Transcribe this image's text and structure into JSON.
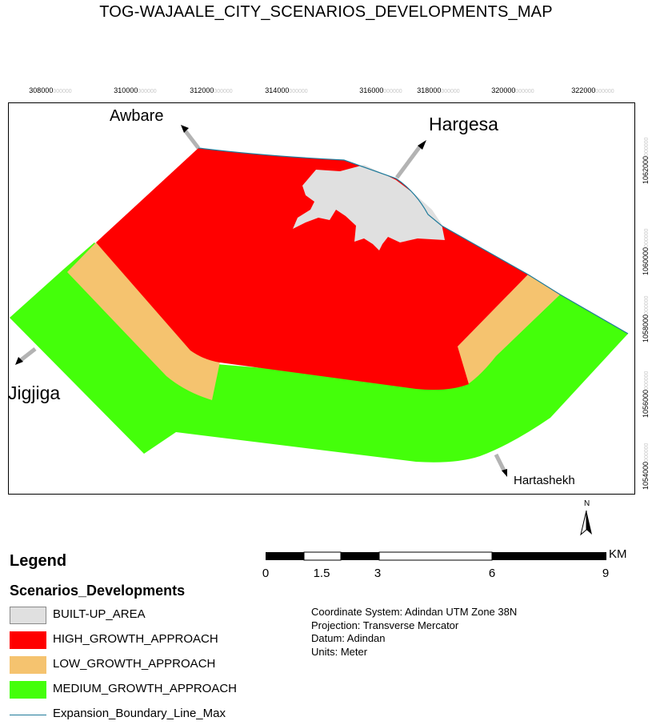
{
  "map": {
    "title": "TOG-WAJAALE_CITY_SCENARIOS_DEVELOPMENTS_MAP",
    "x_ticks": [
      "308000",
      "310000",
      "312000",
      "314000",
      "316000",
      "318000",
      "320000",
      "322000"
    ],
    "x_tick_suffix": "000000",
    "y_ticks": [
      "1062000",
      "1060000",
      "1058000",
      "1056000",
      "1054000"
    ],
    "y_tick_suffix": "000000",
    "places": {
      "awbare": "Awbare",
      "hargesa": "Hargesa",
      "jigjiga": "Jigjiga",
      "hartashekh": "Hartashekh"
    },
    "north_label": "N"
  },
  "colors": {
    "built_up": "#e0e0e0",
    "high_growth": "#ff0000",
    "low_growth": "#f5c36f",
    "medium_growth": "#44ff0a",
    "boundary": "#1f7a9a",
    "arrow": "#b3b3b3"
  },
  "legend": {
    "title": "Legend",
    "subtitle": "Scenarios_Developments",
    "items": [
      {
        "label": "BUILT-UP_AREA",
        "icon": "gray-swatch"
      },
      {
        "label": "HIGH_GROWTH_APPROACH",
        "icon": "red-swatch"
      },
      {
        "label": "LOW_GROWTH_APPROACH",
        "icon": "orange-swatch"
      },
      {
        "label": "MEDIUM_GROWTH_APPROACH",
        "icon": "green-swatch"
      },
      {
        "label": "Expansion_Boundary_Line_Max",
        "icon": "line-swatch"
      }
    ]
  },
  "scale_bar": {
    "labels": [
      "0",
      "1.5",
      "3",
      "6",
      "9"
    ],
    "unit": "KM"
  },
  "coordinate_info": {
    "system": "Coordinate System: Adindan UTM Zone 38N",
    "projection": "Projection: Transverse Mercator",
    "datum": "Datum: Adindan",
    "units": "Units: Meter"
  }
}
